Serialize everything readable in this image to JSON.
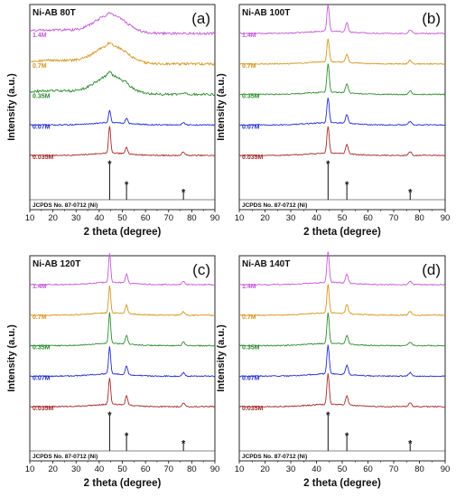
{
  "chart_data": [
    {
      "type": "line",
      "panel_label": "(a)",
      "title": "Ni-AB 80T",
      "xlabel": "2 theta (degree)",
      "ylabel": "Intensity (a.u.)",
      "xlim": [
        10,
        90
      ],
      "x_ticks": [
        "10",
        "20",
        "30",
        "40",
        "50",
        "60",
        "70",
        "80",
        "90"
      ],
      "reference": {
        "label": "JCPDS No. 87-0712 (Ni)",
        "peaks": [
          {
            "x": 44.5,
            "intensity": 100
          },
          {
            "x": 51.8,
            "intensity": 42
          },
          {
            "x": 76.4,
            "intensity": 21
          }
        ],
        "marker": "*"
      },
      "series": [
        {
          "name": "0.035M",
          "color": "#a52a2a",
          "shape": "crystalline",
          "peak_heights": [
            30,
            8,
            4
          ]
        },
        {
          "name": "0.07M",
          "color": "#1f2bd1",
          "shape": "crystalline",
          "peak_heights": [
            14,
            6,
            3
          ]
        },
        {
          "name": "0.35M",
          "color": "#2e8b2e",
          "shape": "broad",
          "peak_heights": [
            5,
            2,
            1
          ]
        },
        {
          "name": "0.7M",
          "color": "#d4961e",
          "shape": "broad",
          "peak_heights": [
            3,
            1,
            0
          ]
        },
        {
          "name": "1.4M",
          "color": "#c35ad6",
          "shape": "broad",
          "peak_heights": [
            2,
            0,
            0
          ]
        }
      ]
    },
    {
      "type": "line",
      "panel_label": "(b)",
      "title": "Ni-AB 100T",
      "xlabel": "2 theta (degree)",
      "ylabel": "Intensity (a.u.)",
      "xlim": [
        10,
        90
      ],
      "x_ticks": [
        "10",
        "20",
        "30",
        "40",
        "50",
        "60",
        "70",
        "80",
        "90"
      ],
      "reference": {
        "label": "JCPDS No. 87-0712 (Ni)",
        "peaks": [
          {
            "x": 44.5,
            "intensity": 100
          },
          {
            "x": 51.8,
            "intensity": 42
          },
          {
            "x": 76.4,
            "intensity": 21
          }
        ],
        "marker": "*"
      },
      "series": [
        {
          "name": "0.035M",
          "color": "#a52a2a",
          "shape": "crystalline",
          "peak_heights": [
            30,
            10,
            4
          ]
        },
        {
          "name": "0.07M",
          "color": "#1f2bd1",
          "shape": "crystalline",
          "peak_heights": [
            28,
            10,
            4
          ]
        },
        {
          "name": "0.35M",
          "color": "#2e8b2e",
          "shape": "crystalline",
          "peak_heights": [
            32,
            10,
            4
          ]
        },
        {
          "name": "0.7M",
          "color": "#d4961e",
          "shape": "crystalline",
          "peak_heights": [
            26,
            9,
            4
          ]
        },
        {
          "name": "1.4M",
          "color": "#c35ad6",
          "shape": "crystalline",
          "peak_heights": [
            30,
            10,
            4
          ]
        }
      ]
    },
    {
      "type": "line",
      "panel_label": "(c)",
      "title": "Ni-AB 120T",
      "xlabel": "2 theta (degree)",
      "ylabel": "Intensity (a.u.)",
      "xlim": [
        10,
        90
      ],
      "x_ticks": [
        "10",
        "20",
        "30",
        "40",
        "50",
        "60",
        "70",
        "80",
        "90"
      ],
      "reference": {
        "label": "JCPDS No. 87-0712 (Ni)",
        "peaks": [
          {
            "x": 44.5,
            "intensity": 100
          },
          {
            "x": 51.8,
            "intensity": 42
          },
          {
            "x": 76.4,
            "intensity": 21
          }
        ],
        "marker": "*"
      },
      "series": [
        {
          "name": "0.035M",
          "color": "#a52a2a",
          "shape": "crystalline",
          "peak_heights": [
            30,
            10,
            4
          ]
        },
        {
          "name": "0.07M",
          "color": "#1f2bd1",
          "shape": "crystalline",
          "peak_heights": [
            30,
            10,
            4
          ]
        },
        {
          "name": "0.35M",
          "color": "#2e8b2e",
          "shape": "crystalline",
          "peak_heights": [
            34,
            10,
            4
          ]
        },
        {
          "name": "0.7M",
          "color": "#d4961e",
          "shape": "crystalline",
          "peak_heights": [
            30,
            10,
            4
          ]
        },
        {
          "name": "1.4M",
          "color": "#c35ad6",
          "shape": "crystalline",
          "peak_heights": [
            32,
            10,
            4
          ]
        }
      ]
    },
    {
      "type": "line",
      "panel_label": "(d)",
      "title": "Ni-AB 140T",
      "xlabel": "2 theta (degree)",
      "ylabel": "Intensity (a.u.)",
      "xlim": [
        10,
        90
      ],
      "x_ticks": [
        "10",
        "20",
        "30",
        "40",
        "50",
        "60",
        "70",
        "80",
        "90"
      ],
      "reference": {
        "label": "JCPDS No. 87-0712 (Ni)",
        "peaks": [
          {
            "x": 44.5,
            "intensity": 100
          },
          {
            "x": 51.8,
            "intensity": 42
          },
          {
            "x": 76.4,
            "intensity": 21
          }
        ],
        "marker": "*"
      },
      "series": [
        {
          "name": "0.035M",
          "color": "#a52a2a",
          "shape": "crystalline",
          "peak_heights": [
            34,
            10,
            4
          ]
        },
        {
          "name": "0.07M",
          "color": "#1f2bd1",
          "shape": "crystalline",
          "peak_heights": [
            32,
            10,
            4
          ]
        },
        {
          "name": "0.35M",
          "color": "#2e8b2e",
          "shape": "crystalline",
          "peak_heights": [
            34,
            10,
            4
          ]
        },
        {
          "name": "0.7M",
          "color": "#d4961e",
          "shape": "crystalline",
          "peak_heights": [
            32,
            10,
            4
          ]
        },
        {
          "name": "1.4M",
          "color": "#c35ad6",
          "shape": "crystalline",
          "peak_heights": [
            34,
            10,
            4
          ]
        }
      ]
    }
  ]
}
